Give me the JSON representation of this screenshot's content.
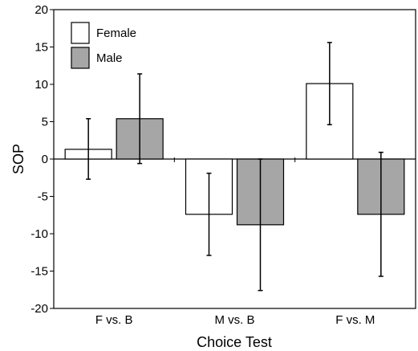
{
  "chart_data": {
    "type": "bar",
    "xlabel": "Choice Test",
    "ylabel": "SOP",
    "categories": [
      "F vs. B",
      "M vs. B",
      "F vs. M"
    ],
    "ylim": [
      -20,
      20
    ],
    "yticks": [
      -20,
      -15,
      -10,
      -5,
      0,
      5,
      10,
      15,
      20
    ],
    "legend_position": "top-left",
    "grid": false,
    "series": [
      {
        "name": "Female",
        "color": "#ffffff",
        "values": [
          1.3,
          -7.4,
          10.1
        ],
        "error_low": [
          -2.7,
          -12.9,
          4.6
        ],
        "error_high": [
          5.4,
          -1.9,
          15.6
        ]
      },
      {
        "name": "Male",
        "color": "#a6a6a6",
        "values": [
          5.4,
          -8.8,
          -7.4
        ],
        "error_low": [
          -0.6,
          -17.6,
          -15.7
        ],
        "error_high": [
          11.4,
          0.0,
          0.9
        ]
      }
    ]
  }
}
